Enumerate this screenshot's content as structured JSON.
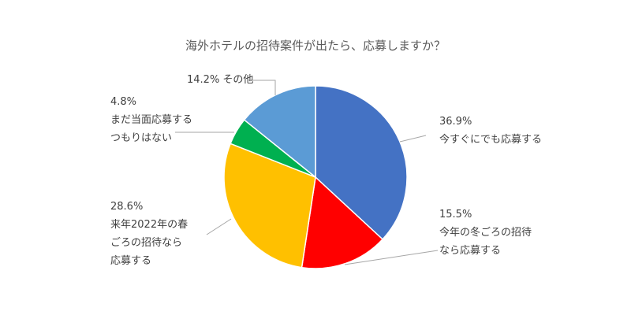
{
  "chart_data": {
    "type": "pie",
    "title": "海外ホテルの招待案件が出たら、応募しますか？",
    "slices": [
      {
        "label_lines": [
          "今すぐにでも応募する"
        ],
        "value": 36.9,
        "value_label": "36.9%",
        "color": "#4472c4"
      },
      {
        "label_lines": [
          "今年の冬ごろの招待",
          "なら応募する"
        ],
        "value": 15.5,
        "value_label": "15.5%",
        "color": "#ff0000"
      },
      {
        "label_lines": [
          "来年2022年の春",
          "ごろの招待なら",
          "応募する"
        ],
        "value": 28.6,
        "value_label": "28.6%",
        "color": "#ffc000"
      },
      {
        "label_lines": [
          "まだ当面応募する",
          "つもりはない"
        ],
        "value": 4.8,
        "value_label": "4.8%",
        "color": "#00b050"
      },
      {
        "label_lines": [
          "その他"
        ],
        "value": 14.2,
        "value_label": "14.2%",
        "color": "#5b9bd5"
      }
    ],
    "start_angle_deg": 0,
    "direction": "clockwise",
    "legend": "none"
  }
}
